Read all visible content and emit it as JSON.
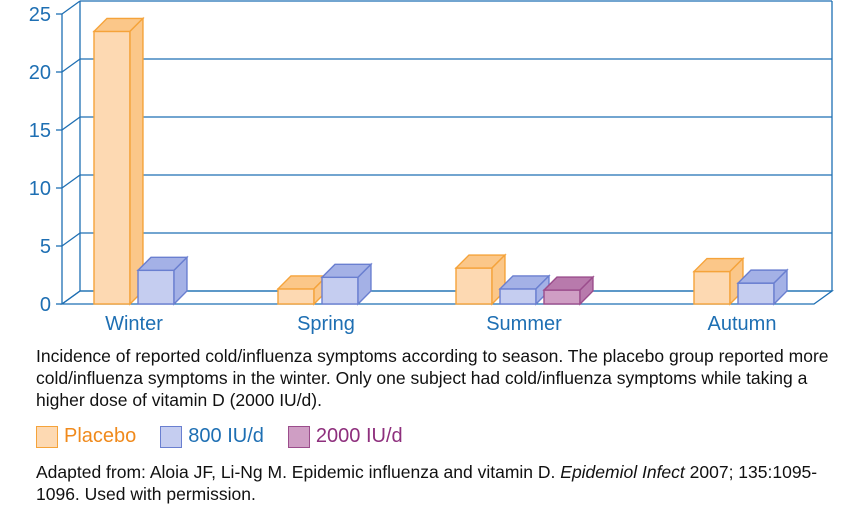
{
  "chart_data": {
    "type": "bar",
    "categories": [
      "Winter",
      "Spring",
      "Summer",
      "Autumn"
    ],
    "series": [
      {
        "name": "Placebo",
        "values": [
          23.5,
          1.3,
          3.1,
          2.8
        ]
      },
      {
        "name": "800 IU/d",
        "values": [
          2.9,
          2.3,
          1.3,
          1.8
        ]
      },
      {
        "name": "2000 IU/d",
        "values": [
          null,
          null,
          1.2,
          null
        ]
      }
    ],
    "yticks": [
      "0",
      "5",
      "10",
      "15",
      "20",
      "25"
    ],
    "ylim": [
      0,
      25
    ],
    "grid": true,
    "legend_position": "bottom-left"
  },
  "colors": {
    "axis": "#1e6fb3",
    "tick_labels": "#1e6fb3",
    "placebo_face": "#fdd9b2",
    "placebo_edge": "#f5a33a",
    "placebo_top": "#fbc789",
    "iu800_face": "#c5cdf0",
    "iu800_edge": "#6a7fd0",
    "iu800_top": "#a4b1e6",
    "iu2000_face": "#cf9ec4",
    "iu2000_edge": "#9b4d8c",
    "iu2000_top": "#b87aac",
    "legend_placebo_text": "#f08a1c",
    "legend_800_text": "#1e6fb3",
    "legend_2000_text": "#8e2f7d"
  },
  "caption": "Incidence of reported cold/influenza symptoms according to season. The placebo group reported more cold/influenza symptoms in the winter. Only one subject had cold/influenza symptoms while taking a higher dose of vitamin D (2000 IU/d).",
  "legend": {
    "placebo": "Placebo",
    "iu800": "800 IU/d",
    "iu2000": "2000 IU/d"
  },
  "source": {
    "prefix": "Adapted from: Aloia JF, Li-Ng M. Epidemic influenza and vitamin D. ",
    "journal": "Epidemiol Infect",
    "suffix": " 2007; 135:1095-1096. Used with permission."
  }
}
